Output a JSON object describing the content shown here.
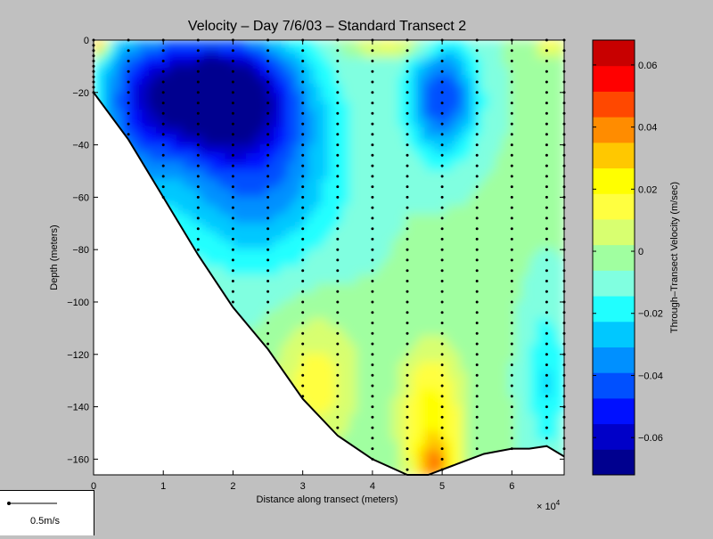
{
  "chart_data": {
    "type": "heatmap",
    "title": "Velocity – Day 7/6/03 – Standard Transect 2",
    "xlabel": "Distance along transect (meters)",
    "ylabel": "Depth (meters)",
    "x_scale_label": "× 10",
    "x_scale_exponent": "4",
    "xlim": [
      0,
      6.75
    ],
    "ylim": [
      -166,
      0
    ],
    "x_ticks": [
      "0",
      "1",
      "2",
      "3",
      "4",
      "5",
      "6"
    ],
    "y_ticks": [
      "0",
      "−20",
      "−40",
      "−60",
      "−80",
      "−100",
      "−120",
      "−140",
      "−160"
    ],
    "colorbar": {
      "label": "Through–Transect Velocity (m/sec)",
      "range": [
        -0.072,
        0.068
      ],
      "ticks": [
        "0.06",
        "0.04",
        "0.02",
        "0",
        "−0.02",
        "−0.04",
        "−0.06"
      ],
      "colors": [
        "#00008f",
        "#0000c8",
        "#0010ff",
        "#0050ff",
        "#0090ff",
        "#00c8ff",
        "#20ffff",
        "#80ffe0",
        "#a0ffa0",
        "#d8ff70",
        "#ffff40",
        "#ffff00",
        "#ffc800",
        "#ff8c00",
        "#ff4800",
        "#ff0000",
        "#c80000"
      ]
    },
    "bottom_profile": [
      [
        0,
        -20
      ],
      [
        0.5,
        -38
      ],
      [
        1,
        -60
      ],
      [
        1.5,
        -82
      ],
      [
        2,
        -102
      ],
      [
        2.5,
        -118
      ],
      [
        3,
        -137
      ],
      [
        3.5,
        -151
      ],
      [
        4,
        -160
      ],
      [
        4.5,
        -166
      ],
      [
        4.8,
        -166
      ],
      [
        5.2,
        -162
      ],
      [
        5.6,
        -158
      ],
      [
        6,
        -156
      ],
      [
        6.25,
        -156
      ],
      [
        6.5,
        -155
      ],
      [
        6.75,
        -159
      ]
    ],
    "station_x": [
      0,
      0.5,
      1,
      1.5,
      2,
      2.5,
      3,
      3.5,
      4,
      4.5,
      5,
      5.5,
      6,
      6.5,
      6.75
    ],
    "field_description": "core of strong southward flow (about -0.07 m/s) centred near x=1.7, depth -15 to -30; weaker negative core near x=5, depth -20; positive flow (up to ~0.05 m/s) near bottom around x=4.8, depth -160; surface positive near x=0"
  },
  "scale_legend": {
    "label": "0.5m/s"
  }
}
